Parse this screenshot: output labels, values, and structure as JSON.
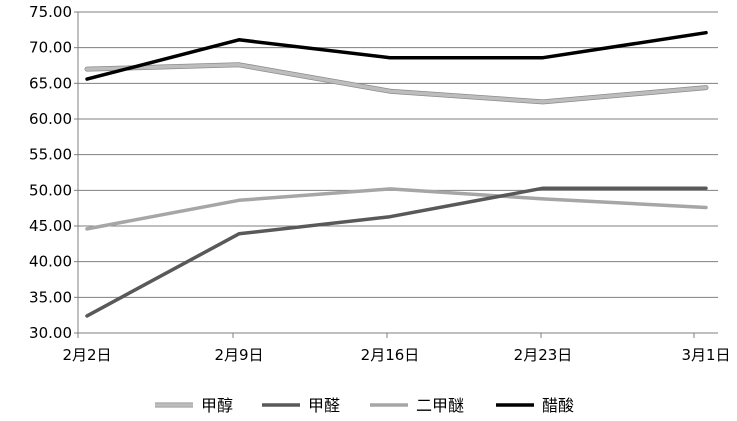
{
  "chart_data": {
    "type": "line",
    "title": "",
    "xlabel": "",
    "ylabel": "",
    "categories": [
      "2月2日",
      "2月9日",
      "2月16日",
      "2月23日",
      "3月1日"
    ],
    "ylim": [
      30,
      75
    ],
    "y_ticks": [
      "30.00",
      "35.00",
      "40.00",
      "45.00",
      "50.00",
      "55.00",
      "60.00",
      "65.00",
      "70.00",
      "75.00"
    ],
    "grid": true,
    "legend_position": "bottom",
    "series": [
      {
        "name": "甲醇",
        "values": [
          67.0,
          67.6,
          63.9,
          62.4,
          64.4
        ],
        "color": "#bdbdbd"
      },
      {
        "name": "甲醛",
        "values": [
          32.4,
          43.9,
          46.3,
          50.3,
          50.3
        ],
        "color": "#595959"
      },
      {
        "name": "二甲醚",
        "values": [
          44.6,
          48.6,
          50.2,
          48.8,
          47.6
        ],
        "color": "#a6a6a6"
      },
      {
        "name": "醋酸",
        "values": [
          65.6,
          71.1,
          68.6,
          68.6,
          72.1
        ],
        "color": "#000000"
      }
    ]
  }
}
